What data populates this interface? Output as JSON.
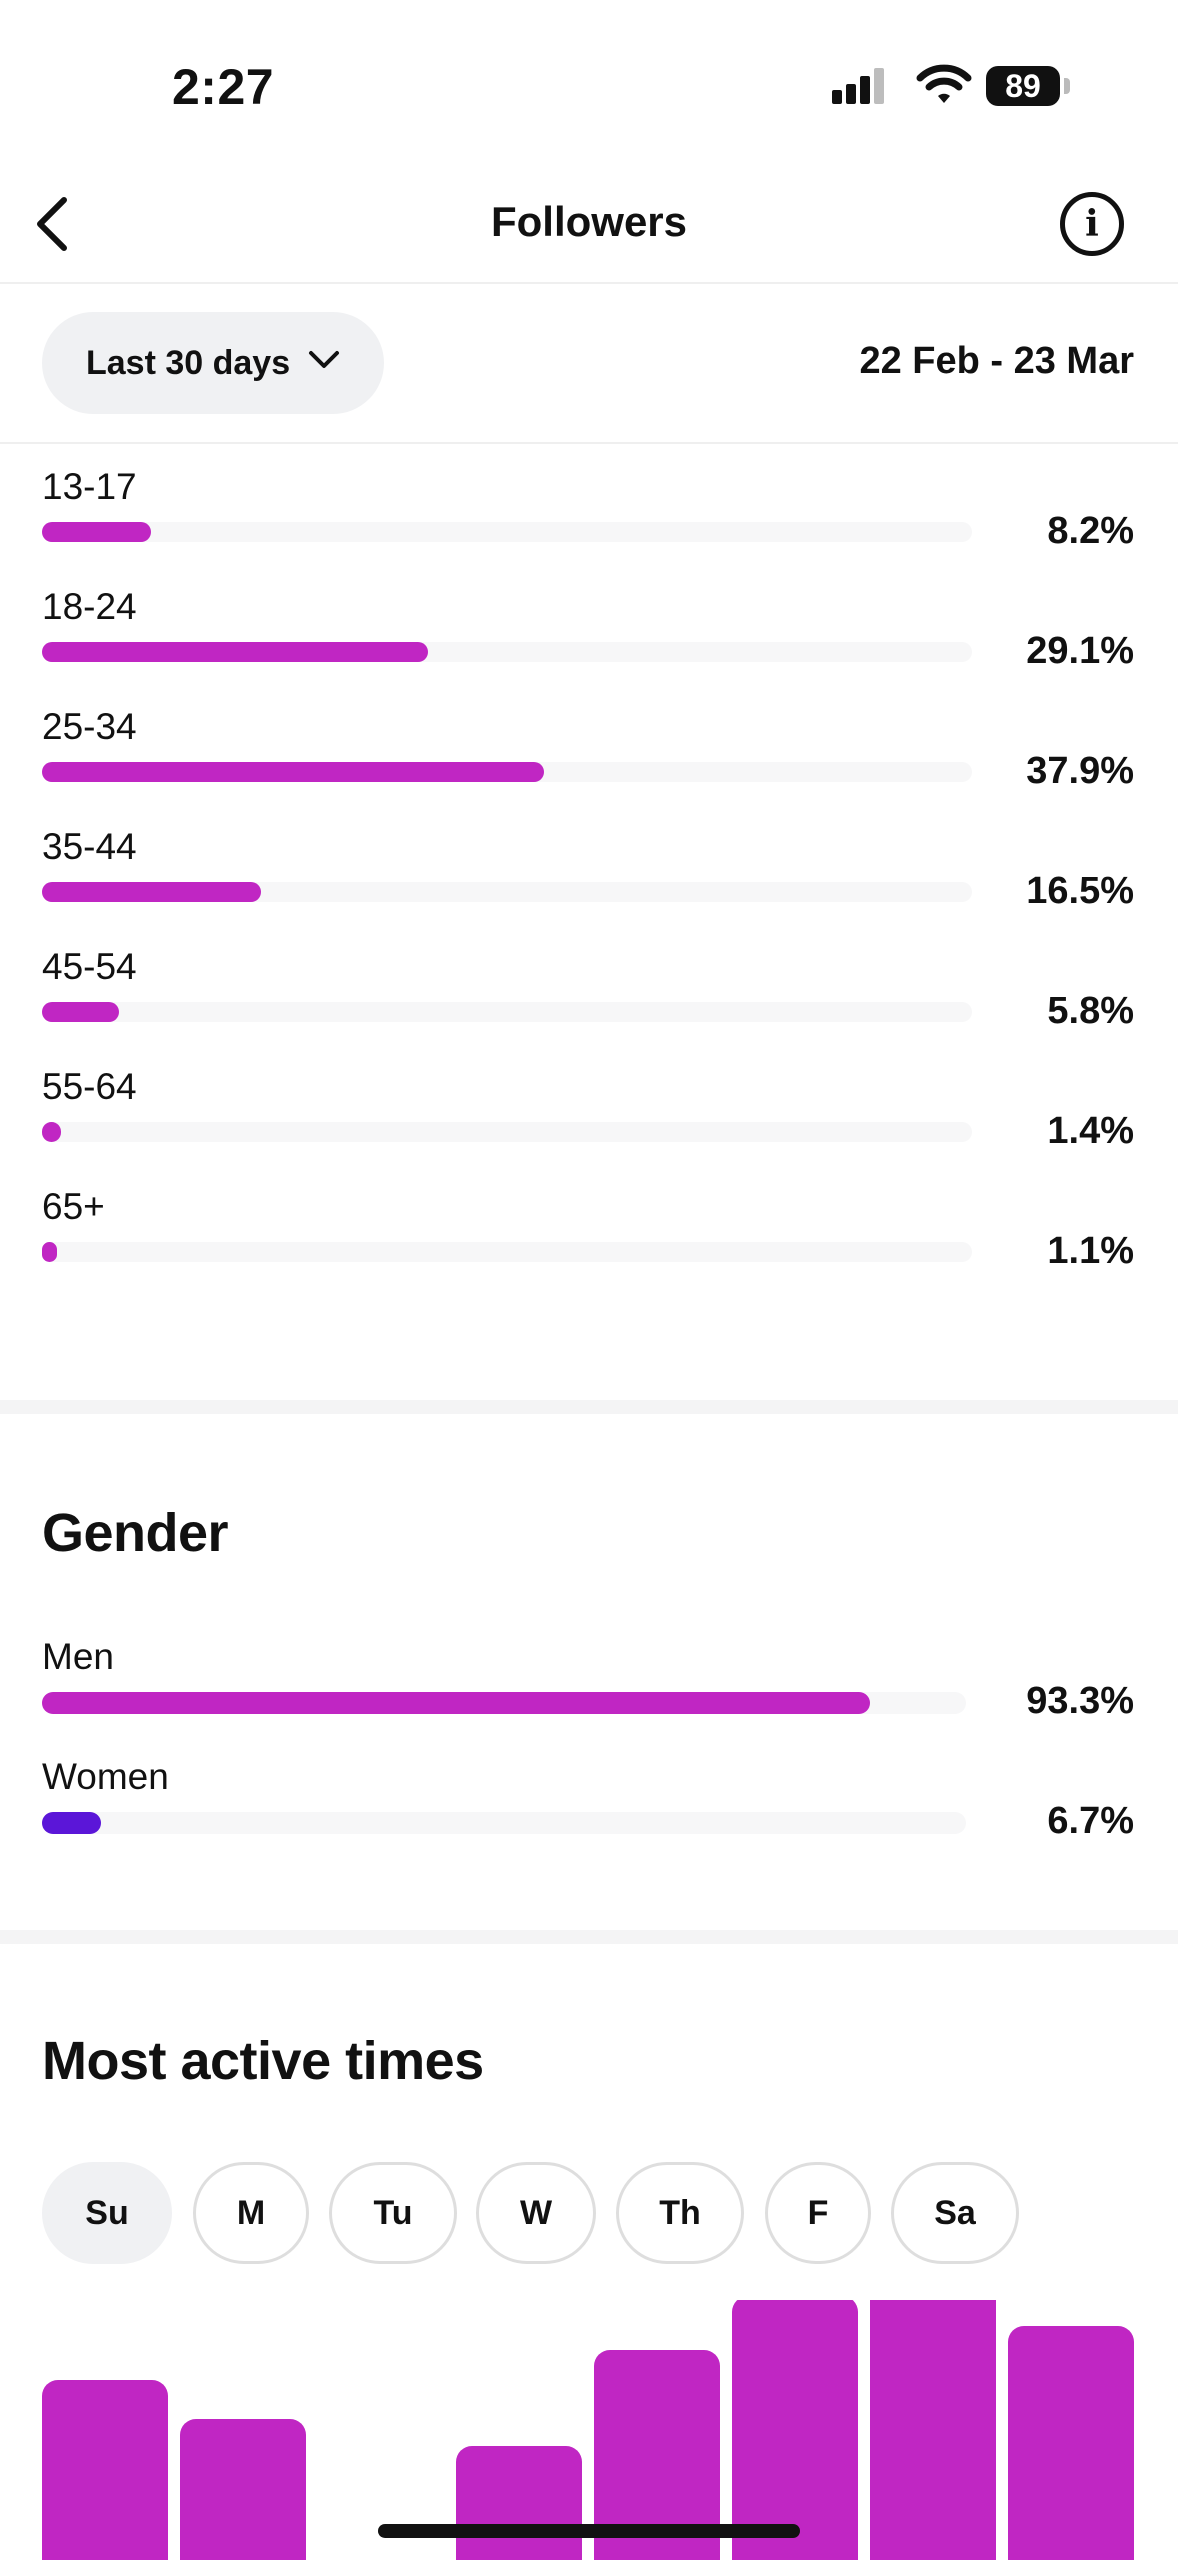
{
  "status_bar": {
    "time": "2:27",
    "battery": "89"
  },
  "header": {
    "title": "Followers"
  },
  "filter": {
    "range_label": "Last 30 days",
    "date_range": "22 Feb - 23 Mar"
  },
  "age_groups": [
    {
      "label": "13-17",
      "percent": "8.2%",
      "value": 8.2
    },
    {
      "label": "18-24",
      "percent": "29.1%",
      "value": 29.1
    },
    {
      "label": "25-34",
      "percent": "37.9%",
      "value": 37.9
    },
    {
      "label": "35-44",
      "percent": "16.5%",
      "value": 16.5
    },
    {
      "label": "45-54",
      "percent": "5.8%",
      "value": 5.8
    },
    {
      "label": "55-64",
      "percent": "1.4%",
      "value": 1.4
    },
    {
      "label": "65+",
      "percent": "1.1%",
      "value": 1.1
    }
  ],
  "gender": {
    "title": "Gender",
    "items": [
      {
        "label": "Men",
        "percent": "93.3%",
        "value": 93.3,
        "color": "#c026c3"
      },
      {
        "label": "Women",
        "percent": "6.7%",
        "value": 6.7,
        "color": "#5b16d8"
      }
    ]
  },
  "active_times": {
    "title": "Most active times",
    "days": [
      "Su",
      "M",
      "Tu",
      "W",
      "Th",
      "F",
      "Sa"
    ],
    "selected_day": "Su",
    "hour_levels": [
      0.6,
      0.47,
      0,
      0.38,
      0.7,
      0.88,
      0.93,
      0.78
    ],
    "bar_color": "#c026c3"
  },
  "colors": {
    "accent": "#c026c3",
    "secondary": "#5b16d8",
    "track": "#f7f7f8"
  }
}
